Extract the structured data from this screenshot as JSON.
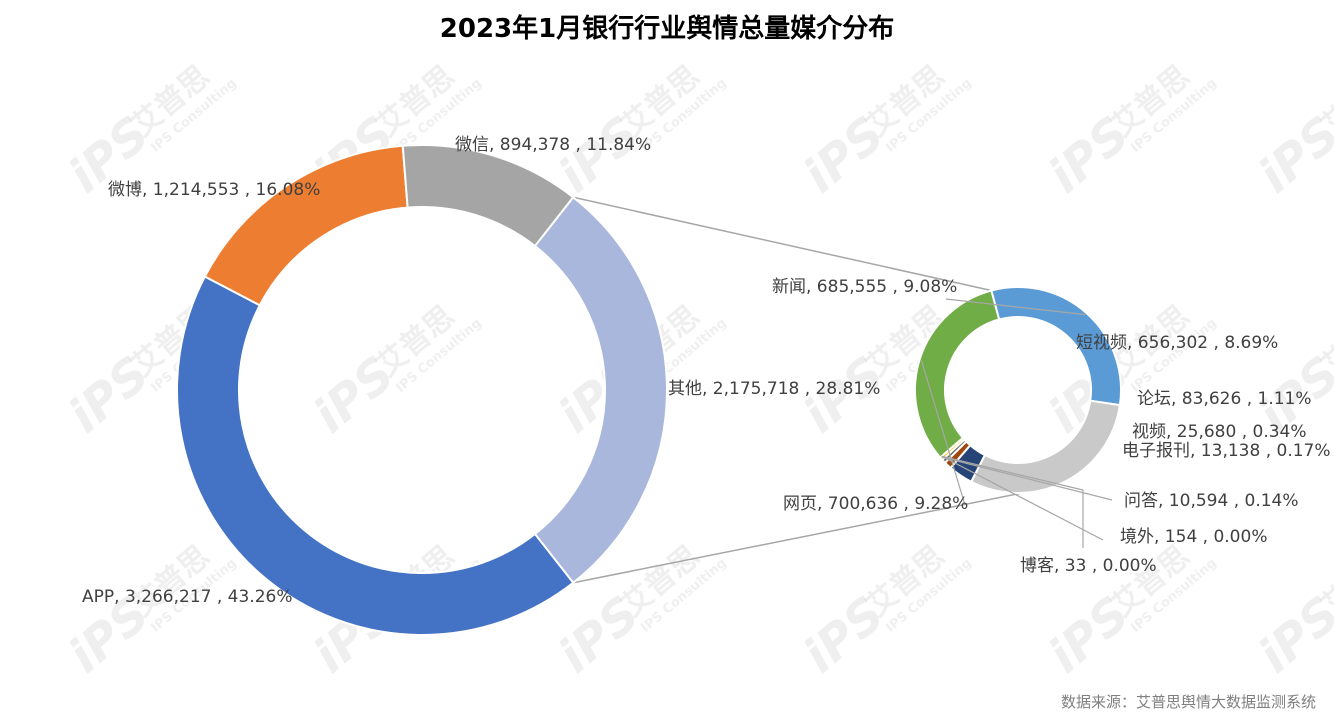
{
  "title": "2023年1月银行行业舆情总量媒介分布",
  "source": "数据来源：艾普思舆情大数据监测系统",
  "watermark": {
    "logo": "iPS",
    "cn": "艾普思",
    "en": "IPS Consulting"
  },
  "chart_data": [
    {
      "type": "pie",
      "style": "doughnut",
      "slices": [
        {
          "label": "APP, 3,266,217 , 43.26%",
          "name": "APP",
          "value": 3266217,
          "percent": 43.26,
          "color": "#4472C4"
        },
        {
          "label": "微博, 1,214,553 , 16.08%",
          "name": "微博",
          "value": 1214553,
          "percent": 16.08,
          "color": "#ED7D31"
        },
        {
          "label": "微信, 894,378 , 11.84%",
          "name": "微信",
          "value": 894378,
          "percent": 11.84,
          "color": "#A5A5A5"
        },
        {
          "label": "其他, 2,175,718 , 28.81%",
          "name": "其他",
          "value": 2175718,
          "percent": 28.81,
          "color": "#A9B7DC"
        }
      ]
    },
    {
      "type": "pie",
      "style": "doughnut",
      "breakdown_of": "其他",
      "slices": [
        {
          "label": "新闻, 685,555 , 9.08%",
          "name": "新闻",
          "value": 685555,
          "percent": 9.08,
          "color": "#5B9BD5"
        },
        {
          "label": "短视频, 656,302 , 8.69%",
          "name": "短视频",
          "value": 656302,
          "percent": 8.69,
          "color": "#C9C9C9"
        },
        {
          "label": "论坛, 83,626 , 1.11%",
          "name": "论坛",
          "value": 83626,
          "percent": 1.11,
          "color": "#264478"
        },
        {
          "label": "视频, 25,680 , 0.34%",
          "name": "视频",
          "value": 25680,
          "percent": 0.34,
          "color": "#9E480E"
        },
        {
          "label": "电子报刊, 13,138 , 0.17%",
          "name": "电子报刊",
          "value": 13138,
          "percent": 0.17,
          "color": "#636363"
        },
        {
          "label": "问答, 10,594 , 0.14%",
          "name": "问答",
          "value": 10594,
          "percent": 0.14,
          "color": "#FFC000"
        },
        {
          "label": "境外, 154 , 0.00%",
          "name": "境外",
          "value": 154,
          "percent": 0.0,
          "color": "#4472C4"
        },
        {
          "label": "博客, 33 , 0.00%",
          "name": "博客",
          "value": 33,
          "percent": 0.0,
          "color": "#ED7D31"
        },
        {
          "label": "网页, 700,636 , 9.28%",
          "name": "网页",
          "value": 700636,
          "percent": 9.28,
          "color": "#70AD47"
        }
      ]
    }
  ]
}
